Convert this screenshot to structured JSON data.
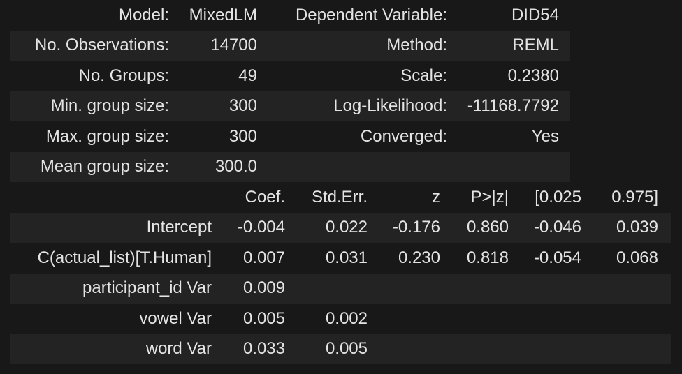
{
  "colors": {
    "background": "#181818",
    "row_stripe": "#232323",
    "text": "#e4e4e4"
  },
  "chart_data": [
    {
      "type": "table",
      "name": "model-info",
      "rows": [
        [
          "Model:",
          "MixedLM",
          "Dependent Variable:",
          "DID54"
        ],
        [
          "No. Observations:",
          "14700",
          "Method:",
          "REML"
        ],
        [
          "No. Groups:",
          "49",
          "Scale:",
          "0.2380"
        ],
        [
          "Min. group size:",
          "300",
          "Log-Likelihood:",
          "-11168.7792"
        ],
        [
          "Max. group size:",
          "300",
          "Converged:",
          "Yes"
        ],
        [
          "Mean group size:",
          "300.0",
          "",
          ""
        ]
      ]
    },
    {
      "type": "table",
      "name": "coefficients",
      "header": [
        "",
        "Coef.",
        "Std.Err.",
        "z",
        "P>|z|",
        "[0.025",
        "0.975]"
      ],
      "rows": [
        [
          "Intercept",
          "-0.004",
          "0.022",
          "-0.176",
          "0.860",
          "-0.046",
          "0.039"
        ],
        [
          "C(actual_list)[T.Human]",
          "0.007",
          "0.031",
          "0.230",
          "0.818",
          "-0.054",
          "0.068"
        ],
        [
          "participant_id Var",
          "0.009",
          "",
          "",
          "",
          "",
          ""
        ],
        [
          "vowel Var",
          "0.005",
          "0.002",
          "",
          "",
          "",
          ""
        ],
        [
          "word Var",
          "0.033",
          "0.005",
          "",
          "",
          "",
          ""
        ]
      ]
    }
  ]
}
